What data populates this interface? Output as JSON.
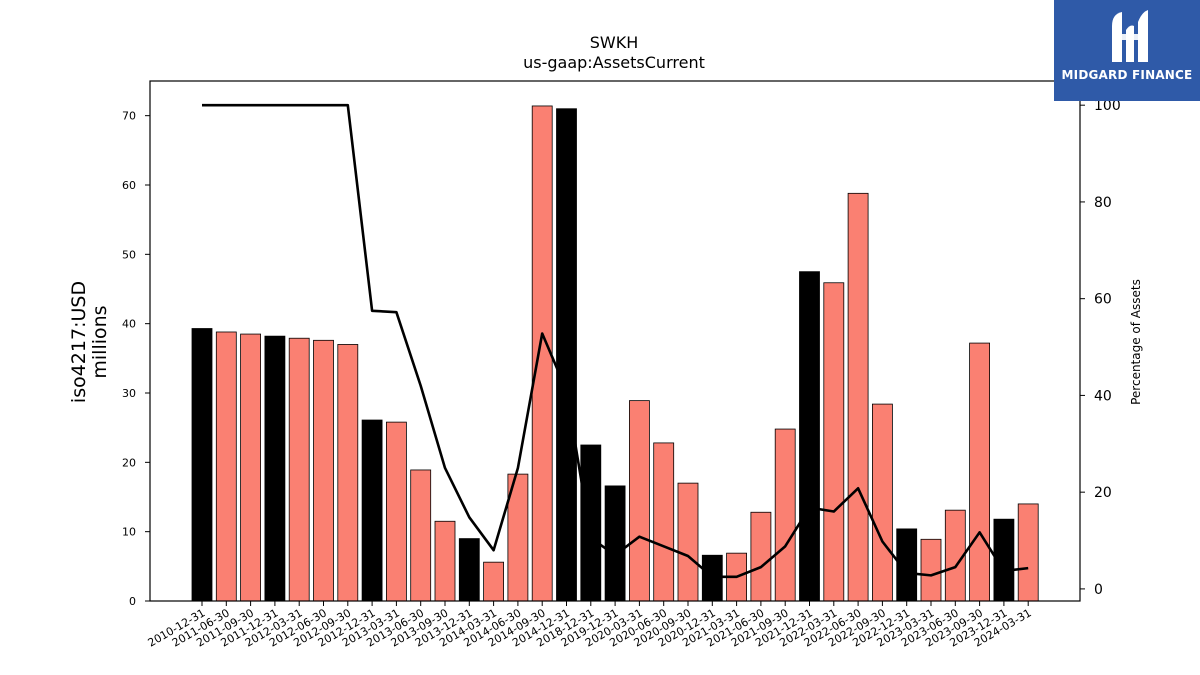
{
  "header": {
    "title": "SWKH",
    "subtitle": "us-gaap:AssetsCurrent"
  },
  "logo": {
    "text": "MIDGARD FINANCE",
    "color": "#2f5aa8"
  },
  "chart_data": {
    "type": "bar",
    "title": "SWKH",
    "subtitle": "us-gaap:AssetsCurrent",
    "ylabel": "iso4217:USD\nmillions",
    "ylabel_right": "Percentage of Assets",
    "ylim": [
      0,
      75
    ],
    "ylim_right": [
      -2.5,
      105
    ],
    "yticks": [
      0,
      10,
      20,
      30,
      40,
      50,
      60,
      70
    ],
    "yticks_right": [
      0,
      20,
      40,
      60,
      80,
      100
    ],
    "grid": false,
    "colors": {
      "bar_annual": "#000000",
      "bar_quarter": "#fa8072",
      "line": "#000000"
    },
    "categories": [
      "2010-12-31",
      "2011-06-30",
      "2011-09-30",
      "2011-12-31",
      "2012-03-31",
      "2012-06-30",
      "2012-09-30",
      "2012-12-31",
      "2013-03-31",
      "2013-06-30",
      "2013-09-30",
      "2013-12-31",
      "2014-03-31",
      "2014-06-30",
      "2014-09-30",
      "2014-12-31",
      "2018-12-31",
      "2019-12-31",
      "2020-03-31",
      "2020-06-30",
      "2020-09-30",
      "2020-12-31",
      "2021-03-31",
      "2021-06-30",
      "2021-09-30",
      "2021-12-31",
      "2022-03-31",
      "2022-06-30",
      "2022-09-30",
      "2022-12-31",
      "2023-03-31",
      "2023-06-30",
      "2023-09-30",
      "2023-12-31",
      "2024-03-31"
    ],
    "values": [
      39.3,
      38.8,
      38.5,
      38.2,
      37.9,
      37.6,
      37.0,
      26.1,
      25.8,
      18.9,
      11.5,
      9.0,
      5.6,
      18.3,
      71.4,
      71.0,
      22.5,
      16.6,
      28.9,
      22.8,
      17.0,
      6.6,
      6.9,
      12.8,
      24.8,
      47.5,
      45.9,
      58.8,
      28.4,
      10.4,
      8.9,
      13.1,
      37.2,
      11.8,
      14.0
    ],
    "annual": [
      true,
      false,
      false,
      true,
      false,
      false,
      false,
      true,
      false,
      false,
      false,
      true,
      false,
      false,
      false,
      true,
      true,
      true,
      false,
      false,
      false,
      true,
      false,
      false,
      false,
      true,
      false,
      false,
      false,
      true,
      false,
      false,
      false,
      true,
      false
    ],
    "line_values": [
      100,
      100,
      100,
      100,
      100,
      100,
      100,
      57.5,
      57.2,
      42.0,
      25.0,
      14.8,
      8.0,
      25.0,
      52.8,
      41.0,
      10.5,
      7.0,
      10.8,
      8.8,
      6.8,
      2.5,
      2.5,
      4.5,
      8.8,
      16.8,
      16.0,
      20.8,
      9.8,
      3.3,
      2.8,
      4.5,
      11.7,
      3.7,
      4.3
    ]
  }
}
